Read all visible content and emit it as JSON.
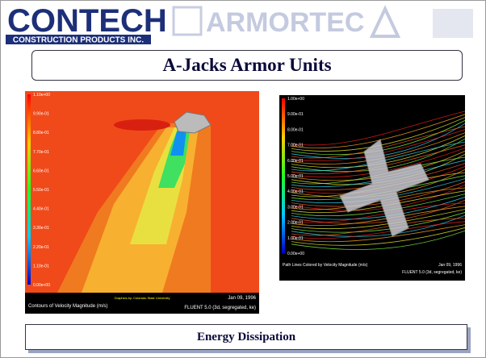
{
  "header": {
    "logo_name": "CONTECH",
    "logo_sub": "CONSTRUCTION PRODUCTS INC.",
    "partner_logo": "ARMORTEC"
  },
  "title": "A-Jacks Armor Units",
  "left_image": {
    "scale_labels": [
      "1.10e+00",
      "9.90e-01",
      "8.80e-01",
      "7.70e-01",
      "6.60e-01",
      "5.50e-01",
      "4.40e-01",
      "3.30e-01",
      "2.20e-01",
      "1.10e-01",
      "0.00e+00"
    ],
    "credit": "Graphics by: Colorado State University",
    "caption": "Contours of Velocity Magnitude (m/s)",
    "date": "Jan 09, 1996",
    "solver": "FLUENT 5.0 (3d, segregated, ke)"
  },
  "right_image": {
    "scale_labels": [
      "1.00e+00",
      "9.00e-01",
      "8.00e-01",
      "7.00e-01",
      "6.00e-01",
      "5.00e-01",
      "4.00e-01",
      "3.00e-01",
      "2.00e-01",
      "1.00e-01",
      "0.00e+00"
    ],
    "caption": "Path Lines Colored by Velocity Magnitude (m/s)",
    "date": "Jan 09, 1996",
    "solver": "FLUENT 5.0 (3d, segregated, ke)"
  },
  "footer": "Energy Dissipation"
}
